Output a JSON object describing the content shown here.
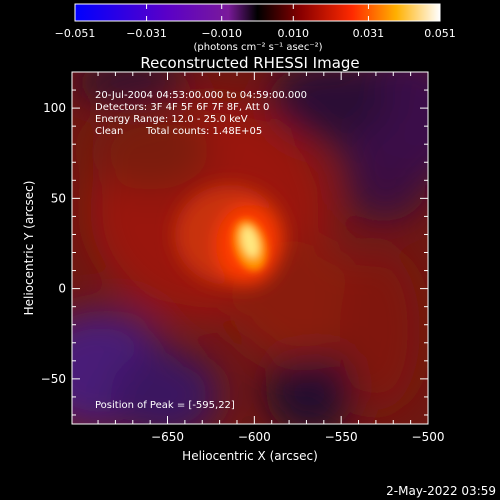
{
  "chart_data": {
    "type": "heatmap",
    "title": "Reconstructed RHESSI Image",
    "xlabel": "Heliocentric X (arcsec)",
    "ylabel": "Heliocentric Y (arcsec)",
    "xlim": [
      -705,
      -500
    ],
    "ylim": [
      -75,
      120
    ],
    "xticks": [
      -650,
      -600,
      -550,
      -500
    ],
    "xtick_labels": [
      "−650",
      "−600",
      "−550",
      "−500"
    ],
    "yticks": [
      -50,
      0,
      50,
      100
    ],
    "ytick_labels": [
      "−50",
      "0",
      "50",
      "100"
    ],
    "colorbar": {
      "range": [
        -0.051,
        0.051
      ],
      "ticks": [
        -0.051,
        -0.031,
        -0.01,
        0.01,
        0.031,
        0.051
      ],
      "tick_labels": [
        "−0.051",
        "−0.031",
        "−0.010",
        "0.010",
        "0.031",
        "0.051"
      ],
      "unit_label": "(photons cm⁻² s⁻¹ asec⁻²)"
    },
    "annotations": {
      "time_range": "20-Jul-2004 04:53:00.000 to 04:59:00.000",
      "detectors": "Detectors: 3F 4F 5F 6F 7F 8F, Att 0",
      "energy_range": "Energy Range: 12.0 - 25.0 keV",
      "clean_label": "Clean",
      "total_counts": "Total counts: 1.48E+05",
      "peak_position": "Position of Peak = [-595,22]"
    },
    "peak": {
      "x": -595,
      "y": 22,
      "value": 0.051
    },
    "footer_date": "2-May-2022 03:59"
  }
}
